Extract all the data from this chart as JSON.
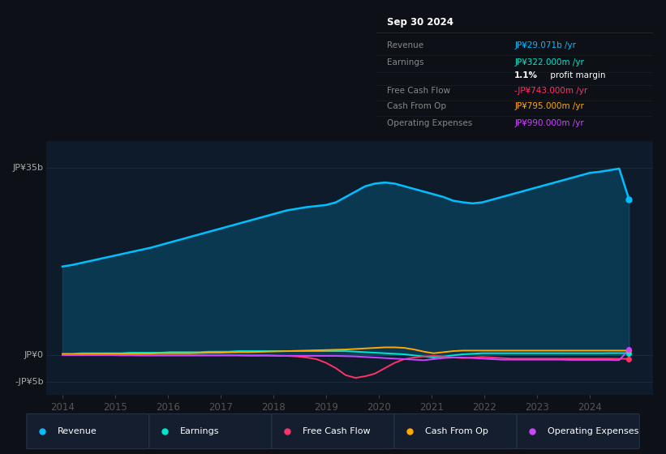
{
  "bg_color": "#0d1117",
  "plot_bg_color": "#0d1b2a",
  "title": "Sep 30 2024",
  "ytick_labels": [
    "JP¥35b",
    "JP¥0",
    "-JP¥5b"
  ],
  "ytick_vals": [
    35,
    0,
    -5
  ],
  "xticks": [
    2014,
    2015,
    2016,
    2017,
    2018,
    2019,
    2020,
    2021,
    2022,
    2023,
    2024
  ],
  "ylim": [
    -7.5,
    40
  ],
  "xlim": [
    2013.7,
    2025.2
  ],
  "grid_color": "#1a2d45",
  "colors": {
    "revenue": "#00bfff",
    "earnings": "#00e5cc",
    "free_cash_flow": "#ff3366",
    "cash_from_op": "#ffaa00",
    "operating_expenses": "#cc44ff"
  },
  "legend": [
    {
      "label": "Revenue",
      "color": "#00bfff"
    },
    {
      "label": "Earnings",
      "color": "#00e5cc"
    },
    {
      "label": "Free Cash Flow",
      "color": "#ff3366"
    },
    {
      "label": "Cash From Op",
      "color": "#ffaa00"
    },
    {
      "label": "Operating Expenses",
      "color": "#cc44ff"
    }
  ],
  "info_rows": [
    {
      "label": "Revenue",
      "value": "JP¥29.071b /yr",
      "color": "#00bfff"
    },
    {
      "label": "Earnings",
      "value": "JP¥322.000m /yr",
      "color": "#00e5cc"
    },
    {
      "label": "",
      "value": "1.1% profit margin",
      "color": "#ffffff"
    },
    {
      "label": "Free Cash Flow",
      "value": "-JP¥743.000m /yr",
      "color": "#ff3366"
    },
    {
      "label": "Cash From Op",
      "value": "JP¥795.000m /yr",
      "color": "#ffaa00"
    },
    {
      "label": "Operating Expenses",
      "value": "JP¥990.000m /yr",
      "color": "#cc44ff"
    }
  ],
  "revenue": [
    16.5,
    16.8,
    17.2,
    17.6,
    18.0,
    18.4,
    18.8,
    19.2,
    19.6,
    20.0,
    20.5,
    21.0,
    21.5,
    22.0,
    22.5,
    23.0,
    23.5,
    24.0,
    24.5,
    25.0,
    25.5,
    26.0,
    26.5,
    27.0,
    27.3,
    27.6,
    27.8,
    28.0,
    28.5,
    29.5,
    30.5,
    31.5,
    32.0,
    32.2,
    32.0,
    31.5,
    31.0,
    30.5,
    30.0,
    29.5,
    28.8,
    28.5,
    28.3,
    28.5,
    29.0,
    29.5,
    30.0,
    30.5,
    31.0,
    31.5,
    32.0,
    32.5,
    33.0,
    33.5,
    34.0,
    34.2,
    34.5,
    34.8,
    29.071
  ],
  "earnings": [
    0.2,
    0.2,
    0.3,
    0.3,
    0.3,
    0.3,
    0.3,
    0.4,
    0.4,
    0.4,
    0.4,
    0.5,
    0.5,
    0.5,
    0.5,
    0.6,
    0.6,
    0.6,
    0.7,
    0.7,
    0.7,
    0.7,
    0.7,
    0.7,
    0.7,
    0.7,
    0.7,
    0.7,
    0.7,
    0.7,
    0.6,
    0.5,
    0.4,
    0.3,
    0.2,
    0.1,
    -0.1,
    -0.3,
    -0.5,
    -0.3,
    -0.1,
    0.1,
    0.2,
    0.3,
    0.3,
    0.3,
    0.3,
    0.3,
    0.3,
    0.3,
    0.3,
    0.3,
    0.3,
    0.3,
    0.3,
    0.3,
    0.32,
    0.32,
    0.322
  ],
  "free_cash_flow": [
    0.0,
    0.0,
    0.0,
    0.0,
    0.0,
    -0.05,
    -0.05,
    -0.05,
    -0.1,
    -0.1,
    -0.1,
    -0.1,
    -0.1,
    -0.1,
    -0.1,
    -0.1,
    -0.1,
    -0.1,
    -0.1,
    -0.1,
    -0.1,
    -0.1,
    -0.15,
    -0.2,
    -0.3,
    -0.5,
    -0.8,
    -1.5,
    -2.5,
    -3.8,
    -4.3,
    -4.0,
    -3.5,
    -2.5,
    -1.5,
    -0.8,
    -0.5,
    -0.3,
    -0.2,
    -0.3,
    -0.5,
    -0.6,
    -0.5,
    -0.4,
    -0.5,
    -0.6,
    -0.7,
    -0.7,
    -0.7,
    -0.7,
    -0.7,
    -0.7,
    -0.7,
    -0.7,
    -0.7,
    -0.7,
    -0.7,
    -0.74,
    -0.743
  ],
  "cash_from_op": [
    0.1,
    0.1,
    0.1,
    0.15,
    0.2,
    0.2,
    0.2,
    0.2,
    0.2,
    0.25,
    0.3,
    0.3,
    0.3,
    0.3,
    0.35,
    0.4,
    0.4,
    0.45,
    0.5,
    0.5,
    0.55,
    0.6,
    0.65,
    0.7,
    0.75,
    0.8,
    0.85,
    0.9,
    0.95,
    1.0,
    1.1,
    1.2,
    1.3,
    1.4,
    1.4,
    1.3,
    1.0,
    0.6,
    0.3,
    0.5,
    0.7,
    0.8,
    0.8,
    0.8,
    0.8,
    0.8,
    0.8,
    0.8,
    0.8,
    0.8,
    0.8,
    0.8,
    0.8,
    0.8,
    0.8,
    0.8,
    0.8,
    0.8,
    0.795
  ],
  "operating_expenses": [
    -0.05,
    -0.05,
    -0.05,
    -0.05,
    -0.05,
    -0.05,
    -0.1,
    -0.1,
    -0.1,
    -0.1,
    -0.1,
    -0.1,
    -0.1,
    -0.1,
    -0.1,
    -0.1,
    -0.1,
    -0.1,
    -0.1,
    -0.15,
    -0.15,
    -0.15,
    -0.2,
    -0.2,
    -0.2,
    -0.2,
    -0.2,
    -0.2,
    -0.2,
    -0.25,
    -0.3,
    -0.4,
    -0.5,
    -0.6,
    -0.7,
    -0.8,
    -0.9,
    -1.0,
    -0.8,
    -0.6,
    -0.5,
    -0.5,
    -0.6,
    -0.7,
    -0.8,
    -0.9,
    -0.9,
    -0.9,
    -0.9,
    -0.9,
    -0.9,
    -0.9,
    -0.95,
    -0.95,
    -0.95,
    -0.95,
    -0.95,
    -0.98,
    0.99
  ]
}
